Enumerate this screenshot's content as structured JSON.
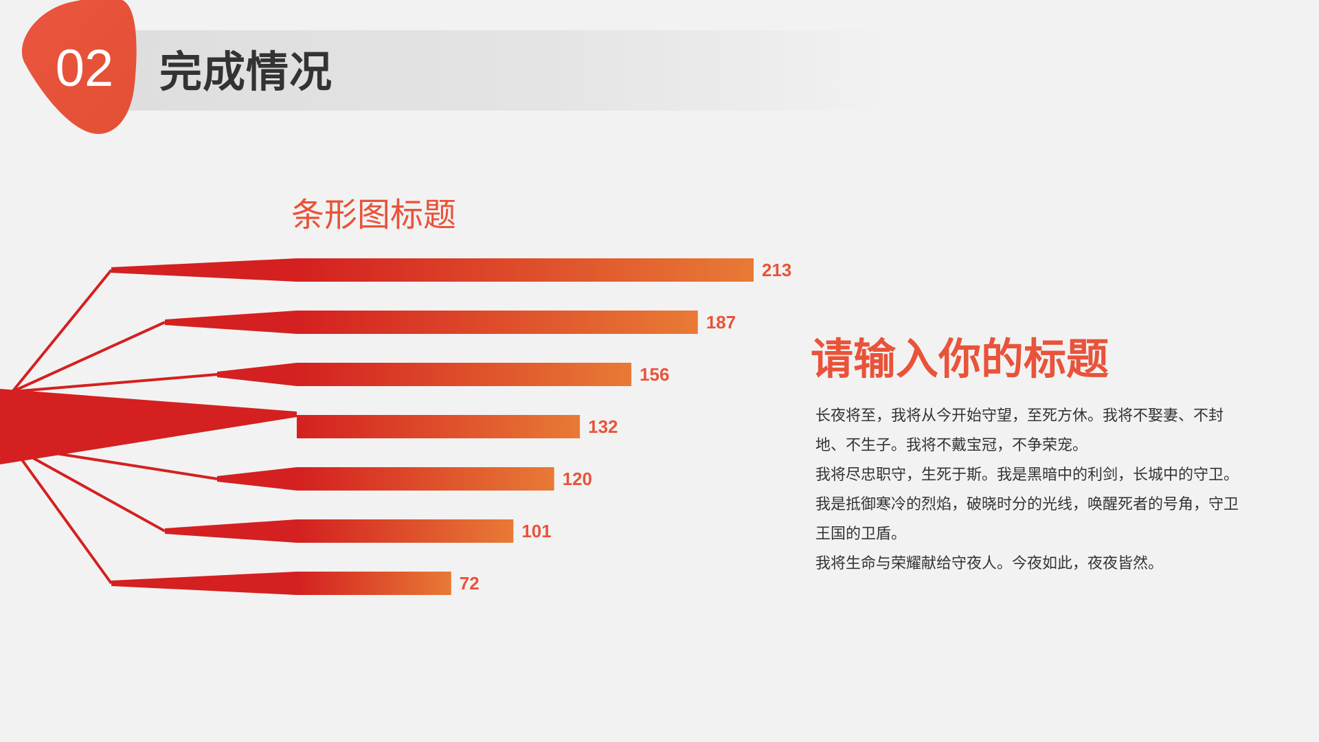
{
  "header": {
    "section_number": "02",
    "section_title": "完成情况"
  },
  "colors": {
    "accent": "#e8533a",
    "bar_start": "#d42020",
    "bar_end": "#e87a35",
    "title_text": "#333333"
  },
  "chart_data": {
    "type": "bar",
    "orientation": "horizontal",
    "title": "条形图标题",
    "categories": [
      "",
      "",
      "",
      "",
      "",
      "",
      ""
    ],
    "values": [
      213,
      187,
      156,
      132,
      120,
      101,
      72
    ],
    "value_labels": [
      "213",
      "187",
      "156",
      "132",
      "120",
      "101",
      "72"
    ],
    "xlim": [
      0,
      213
    ],
    "grid": false,
    "legend": "none"
  },
  "content": {
    "title": "请输入你的标题",
    "paragraphs": [
      "长夜将至，我将从今开始守望，至死方休。我将不娶妻、不封地、不生子。我将不戴宝冠，不争荣宠。",
      "我将尽忠职守，生死于斯。我是黑暗中的利剑，长城中的守卫。我是抵御寒冷的烈焰，破晓时分的光线，唤醒死者的号角，守卫王国的卫盾。",
      "我将生命与荣耀献给守夜人。今夜如此，夜夜皆然。"
    ]
  }
}
